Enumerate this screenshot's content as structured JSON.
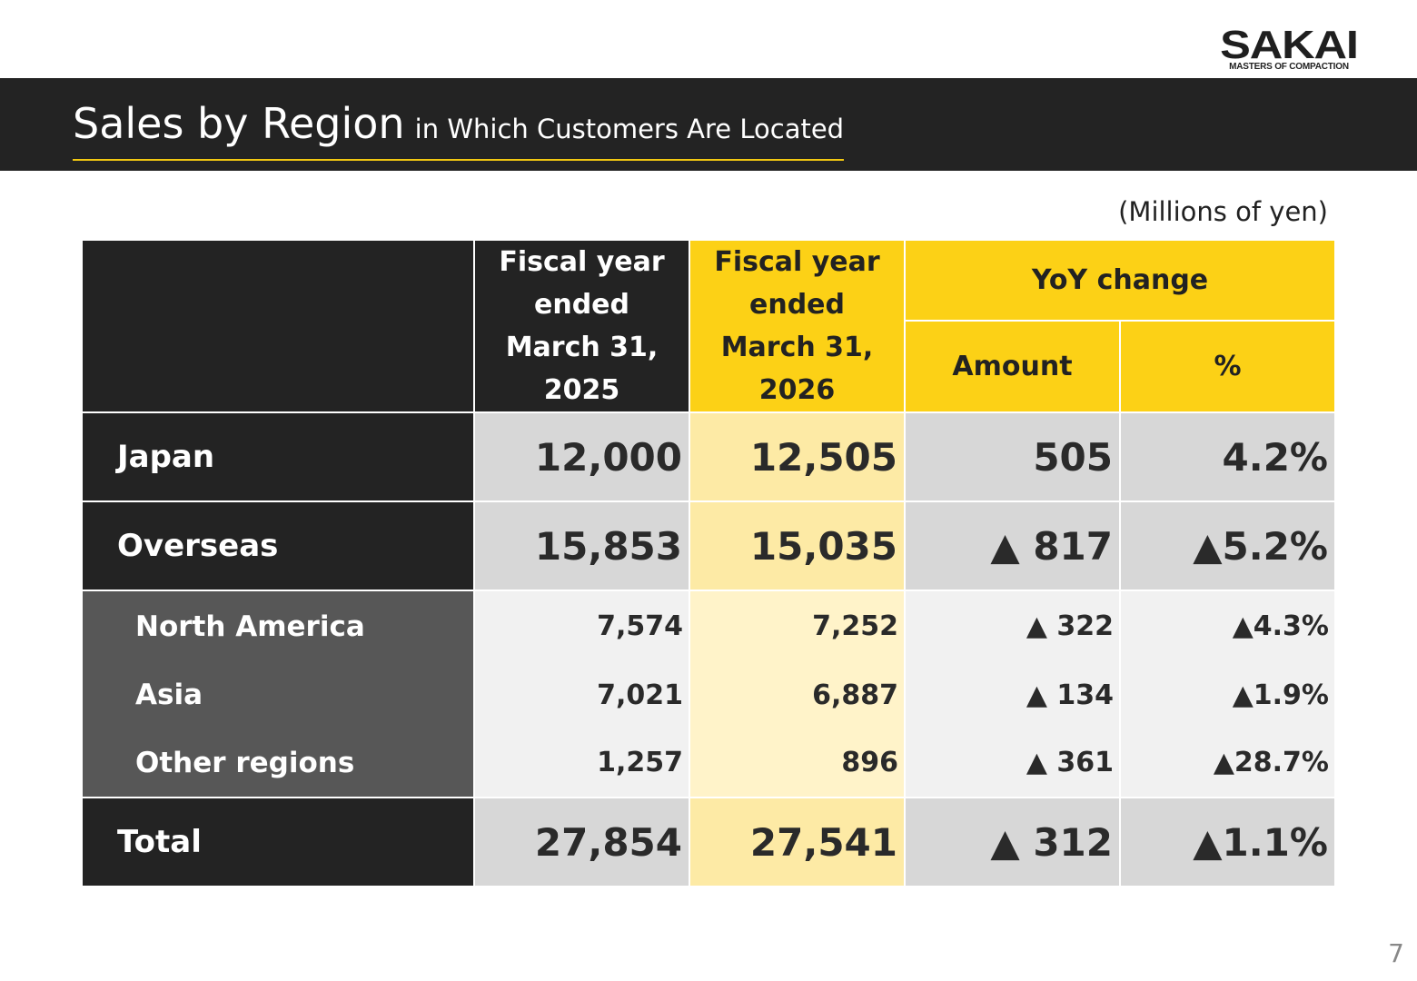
{
  "logo": {
    "name": "SAKAI",
    "tagline": "MASTERS OF COMPACTION"
  },
  "title": {
    "main": "Sales by Region",
    "sub": "in Which Customers Are Located"
  },
  "unit": "(Millions of yen)",
  "table": {
    "headers": {
      "fy2025": [
        "Fiscal year",
        "ended",
        "March 31,",
        "2025"
      ],
      "fy2026": [
        "Fiscal year",
        "ended",
        "March 31,",
        "2026"
      ],
      "yoy": "YoY change",
      "amount": "Amount",
      "percent": "%"
    },
    "rows": [
      {
        "label": "Japan",
        "fy2025": "12,000",
        "fy2026": "12,505",
        "amount": "505",
        "percent": "4.2%"
      },
      {
        "label": "Overseas",
        "fy2025": "15,853",
        "fy2026": "15,035",
        "amount": "▲ 817",
        "percent": "▲5.2%"
      },
      {
        "label": "North America",
        "fy2025": "7,574",
        "fy2026": "7,252",
        "amount": "▲ 322",
        "percent": "▲4.3%"
      },
      {
        "label": "Asia",
        "fy2025": "7,021",
        "fy2026": "6,887",
        "amount": "▲ 134",
        "percent": "▲1.9%"
      },
      {
        "label": "Other regions",
        "fy2025": "1,257",
        "fy2026": "896",
        "amount": "▲ 361",
        "percent": "▲28.7%"
      },
      {
        "label": "Total",
        "fy2025": "27,854",
        "fy2026": "27,541",
        "amount": "▲ 312",
        "percent": "▲1.1%"
      }
    ]
  },
  "page_number": "7",
  "colors": {
    "dark": "#232323",
    "accent_yellow": "#fcd116",
    "sub_gray": "#575757"
  }
}
